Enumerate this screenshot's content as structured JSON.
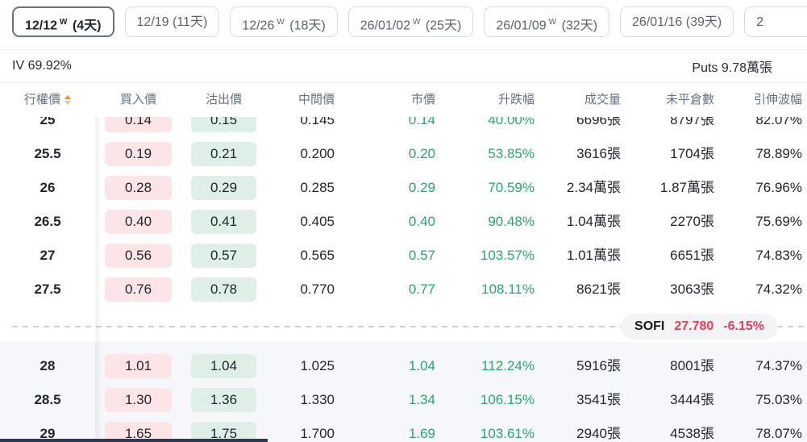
{
  "tabs": [
    {
      "date": "12/12",
      "week": "W",
      "days": "(4天)",
      "selected": true,
      "partial": false
    },
    {
      "date": "12/19",
      "week": "",
      "days": "(11天)",
      "selected": false,
      "partial": false
    },
    {
      "date": "12/26",
      "week": "W",
      "days": "(18天)",
      "selected": false,
      "partial": false
    },
    {
      "date": "26/01/02",
      "week": "W",
      "days": "(25天)",
      "selected": false,
      "partial": false
    },
    {
      "date": "26/01/09",
      "week": "W",
      "days": "(32天)",
      "selected": false,
      "partial": false
    },
    {
      "date": "26/01/16",
      "week": "",
      "days": "(39天)",
      "selected": false,
      "partial": false
    },
    {
      "date": "2",
      "week": "",
      "days": "",
      "selected": false,
      "partial": true
    }
  ],
  "summary": {
    "iv_label": "IV 69.92%",
    "puts_label": "Puts 9.78萬張"
  },
  "columns": [
    "行權價",
    "買入價",
    "沽出價",
    "中間價",
    "市價",
    "升跌幅",
    "成交量",
    "未平倉數",
    "引伸波幅"
  ],
  "underlying": {
    "symbol": "SOFI",
    "price": "27.780",
    "change_pct": "-6.15%"
  },
  "rows_above": [
    {
      "strike": "25",
      "bid": "0.14",
      "ask": "0.15",
      "mid": "0.145",
      "last": "0.14",
      "change": "40.00%",
      "volume": "6696張",
      "open_interest": "8797張",
      "iv": "82.07%"
    },
    {
      "strike": "25.5",
      "bid": "0.19",
      "ask": "0.21",
      "mid": "0.200",
      "last": "0.20",
      "change": "53.85%",
      "volume": "3616張",
      "open_interest": "1704張",
      "iv": "78.89%"
    },
    {
      "strike": "26",
      "bid": "0.28",
      "ask": "0.29",
      "mid": "0.285",
      "last": "0.29",
      "change": "70.59%",
      "volume": "2.34萬張",
      "open_interest": "1.87萬張",
      "iv": "76.96%"
    },
    {
      "strike": "26.5",
      "bid": "0.40",
      "ask": "0.41",
      "mid": "0.405",
      "last": "0.40",
      "change": "90.48%",
      "volume": "1.04萬張",
      "open_interest": "2270張",
      "iv": "75.69%"
    },
    {
      "strike": "27",
      "bid": "0.56",
      "ask": "0.57",
      "mid": "0.565",
      "last": "0.57",
      "change": "103.57%",
      "volume": "1.01萬張",
      "open_interest": "6651張",
      "iv": "74.83%"
    },
    {
      "strike": "27.5",
      "bid": "0.76",
      "ask": "0.78",
      "mid": "0.770",
      "last": "0.77",
      "change": "108.11%",
      "volume": "8621張",
      "open_interest": "3063張",
      "iv": "74.32%"
    }
  ],
  "rows_below": [
    {
      "strike": "28",
      "bid": "1.01",
      "ask": "1.04",
      "mid": "1.025",
      "last": "1.04",
      "change": "112.24%",
      "volume": "5916張",
      "open_interest": "8001張",
      "iv": "74.37%"
    },
    {
      "strike": "28.5",
      "bid": "1.30",
      "ask": "1.36",
      "mid": "1.330",
      "last": "1.34",
      "change": "106.15%",
      "volume": "3541張",
      "open_interest": "3444張",
      "iv": "75.03%"
    },
    {
      "strike": "29",
      "bid": "1.65",
      "ask": "1.75",
      "mid": "1.700",
      "last": "1.69",
      "change": "103.61%",
      "volume": "2940張",
      "open_interest": "4538張",
      "iv": "78.07%"
    }
  ],
  "colors": {
    "green_text": "#27a76b",
    "red_text": "#ee3a55",
    "bid_bg": "#fce4e7",
    "ask_bg": "#ddefe7",
    "below_section_bg": "#f5f7fb",
    "sort_up_orange": "#f28c1e",
    "selected_tab_border": "#667080"
  }
}
